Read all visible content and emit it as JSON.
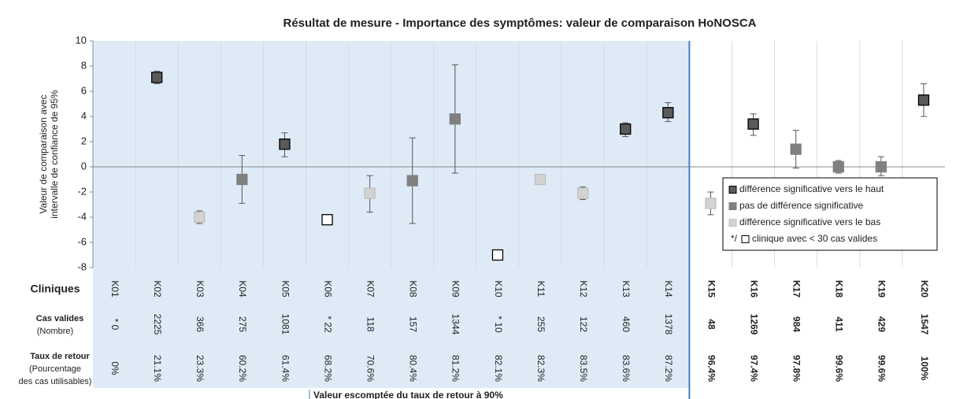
{
  "chart_data": {
    "type": "errorbar-scatter",
    "title": "Résultat de mesure - Importance des symptômes:  valeur de comparaison  HoNOSCA",
    "y_label": [
      "Valeur de comparaison avec",
      "intervalle de confiance de 95%"
    ],
    "categories": [
      "K01",
      "K02",
      "K03",
      "K04",
      "K05",
      "K06",
      "K07",
      "K08",
      "K09",
      "K10",
      "K11",
      "K12",
      "K13",
      "K14",
      "K15",
      "K16",
      "K17",
      "K18",
      "K19",
      "K20"
    ],
    "ylim": [
      -8,
      10
    ],
    "yticks": [
      -8,
      -6,
      -4,
      -2,
      0,
      2,
      4,
      6,
      8,
      10
    ],
    "series": [
      {
        "name": "différence significative vers le haut",
        "color": "#5a5a5a",
        "border": "#000000",
        "values": [
          null,
          7.1,
          null,
          null,
          1.8,
          null,
          null,
          null,
          null,
          null,
          null,
          null,
          3.0,
          4.3,
          null,
          3.4,
          null,
          null,
          null,
          5.3
        ],
        "low": [
          null,
          6.6,
          null,
          null,
          0.8,
          null,
          null,
          null,
          null,
          null,
          null,
          null,
          2.4,
          3.6,
          null,
          2.5,
          null,
          null,
          null,
          4.0
        ],
        "high": [
          null,
          7.6,
          null,
          null,
          2.7,
          null,
          null,
          null,
          null,
          null,
          null,
          null,
          3.5,
          5.1,
          null,
          4.2,
          null,
          null,
          null,
          6.6
        ]
      },
      {
        "name": "pas de différence significative",
        "color": "#808080",
        "border": "#808080",
        "values": [
          null,
          null,
          null,
          -1.0,
          null,
          null,
          null,
          -1.1,
          3.8,
          null,
          null,
          null,
          null,
          null,
          null,
          null,
          1.4,
          0,
          0,
          null
        ],
        "low": [
          null,
          null,
          null,
          -2.9,
          null,
          null,
          null,
          -4.5,
          -0.5,
          null,
          null,
          null,
          null,
          null,
          null,
          null,
          -0.1,
          -0.5,
          -0.7,
          null
        ],
        "high": [
          null,
          null,
          null,
          0.9,
          null,
          null,
          null,
          2.3,
          8.1,
          null,
          null,
          null,
          null,
          null,
          null,
          null,
          2.9,
          0.5,
          0.8,
          null
        ]
      },
      {
        "name": "différence significative vers le bas",
        "color": "#d3d3d3",
        "border": "#bfbfbf",
        "values": [
          null,
          null,
          -4.0,
          null,
          null,
          null,
          -2.1,
          null,
          null,
          null,
          -1.0,
          -2.1,
          null,
          null,
          -2.9,
          null,
          null,
          null,
          null,
          null
        ],
        "low": [
          null,
          null,
          -4.5,
          null,
          null,
          null,
          -3.6,
          null,
          null,
          null,
          null,
          -2.6,
          null,
          null,
          -3.8,
          null,
          null,
          null,
          null,
          null
        ],
        "high": [
          null,
          null,
          -3.5,
          null,
          null,
          null,
          -0.7,
          null,
          null,
          null,
          null,
          -1.6,
          null,
          null,
          -2.0,
          null,
          null,
          null,
          null,
          null
        ]
      },
      {
        "name": "clinique avec < 30 cas valides",
        "prefix": "*/",
        "color": "#ffffff",
        "border": "#000000",
        "values": [
          null,
          null,
          null,
          null,
          null,
          -4.2,
          null,
          null,
          null,
          -7.0,
          null,
          null,
          null,
          null,
          null,
          null,
          null,
          null,
          null,
          null
        ]
      }
    ],
    "table": {
      "row_labels": [
        [
          "Cliniques"
        ],
        [
          "Cas valides",
          "(Nombre)"
        ],
        [
          "Taux de retour",
          "(Pourcentage",
          "des cas utilisables)"
        ]
      ],
      "cases": [
        "* 0",
        "2225",
        "366",
        "275",
        "1081",
        "* 22",
        "118",
        "157",
        "1344",
        "* 10",
        "255",
        "122",
        "460",
        "1378",
        "48",
        "1269",
        "984",
        "411",
        "429",
        "1547"
      ],
      "rates": [
        "0%",
        "21.1%",
        "23.3%",
        "60.2%",
        "61.4%",
        "68.2%",
        "70.6%",
        "80.4%",
        "81.2%",
        "82.1%",
        "82.3%",
        "83.5%",
        "83.6%",
        "87.2%",
        "96.4%",
        "97.4%",
        "97.8%",
        "99.6%",
        "99.6%",
        "100%"
      ]
    },
    "separator_label": "Valeur escomptée du taux de retour à 90%"
  }
}
